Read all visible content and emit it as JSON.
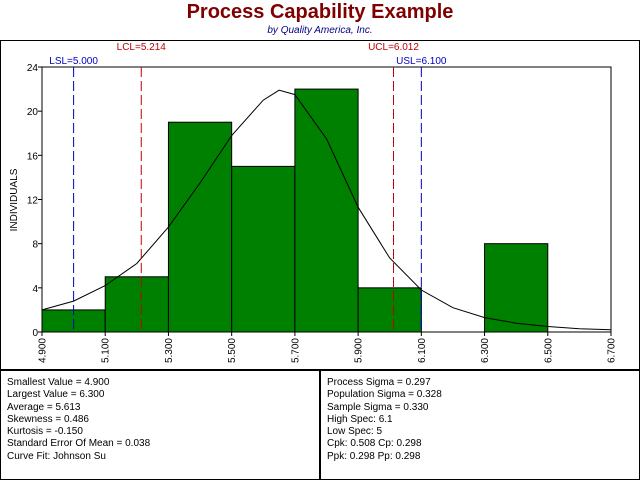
{
  "title": "Process Capability Example",
  "subtitle": "by Quality America, Inc.",
  "chart_data": {
    "type": "bar",
    "title": "Process Capability Example",
    "subtitle": "by Quality America, Inc.",
    "ylabel": "INDIVIDUALS",
    "xlabel": "",
    "xlim": [
      4.9,
      6.7
    ],
    "ylim": [
      0,
      24
    ],
    "x_ticks": [
      "4.900",
      "5.100",
      "5.300",
      "5.500",
      "5.700",
      "5.900",
      "6.100",
      "6.300",
      "6.500",
      "6.700"
    ],
    "y_ticks": [
      "0",
      "4",
      "8",
      "12",
      "16",
      "20",
      "24"
    ],
    "bins": [
      {
        "start": 4.9,
        "end": 5.1,
        "count": 2
      },
      {
        "start": 5.1,
        "end": 5.3,
        "count": 5
      },
      {
        "start": 5.3,
        "end": 5.5,
        "count": 19
      },
      {
        "start": 5.5,
        "end": 5.7,
        "count": 15
      },
      {
        "start": 5.7,
        "end": 5.9,
        "count": 22
      },
      {
        "start": 5.9,
        "end": 6.1,
        "count": 4
      },
      {
        "start": 6.1,
        "end": 6.3,
        "count": 0
      },
      {
        "start": 6.3,
        "end": 6.5,
        "count": 8
      }
    ],
    "spec_lines": [
      {
        "label": "LSL=5.000",
        "value": 5.0,
        "color": "#0000C0"
      },
      {
        "label": "USL=6.100",
        "value": 6.1,
        "color": "#0000C0"
      }
    ],
    "control_lines": [
      {
        "label": "LCL=5.214",
        "value": 5.214,
        "color": "#C00000"
      },
      {
        "label": "UCL=6.012",
        "value": 6.012,
        "color": "#C00000"
      }
    ],
    "curve": {
      "name": "Johnson Su",
      "x": [
        4.9,
        5.0,
        5.1,
        5.2,
        5.3,
        5.4,
        5.5,
        5.6,
        5.65,
        5.7,
        5.8,
        5.9,
        6.0,
        6.1,
        6.2,
        6.3,
        6.4,
        6.5,
        6.6,
        6.7
      ],
      "y": [
        2.0,
        2.8,
        4.2,
        6.2,
        9.5,
        13.5,
        17.8,
        21.0,
        21.9,
        21.5,
        17.5,
        11.3,
        6.7,
        3.8,
        2.2,
        1.3,
        0.8,
        0.5,
        0.3,
        0.2
      ]
    },
    "bar_color": "#008000",
    "grid": false
  },
  "stats_left": [
    "Smallest Value = 4.900",
    "Largest Value = 6.300",
    "Average = 5.613",
    "Skewness = 0.486",
    "Kurtosis = -0.150",
    "Standard Error Of Mean = 0.038",
    "Curve Fit: Johnson Su"
  ],
  "stats_right": [
    "Process Sigma = 0.297",
    "Population Sigma = 0.328",
    "Sample Sigma = 0.330",
    "High Spec: 6.1",
    "Low Spec: 5",
    "Cpk: 0.508   Cp: 0.298",
    "Ppk: 0.298   Pp: 0.298"
  ]
}
